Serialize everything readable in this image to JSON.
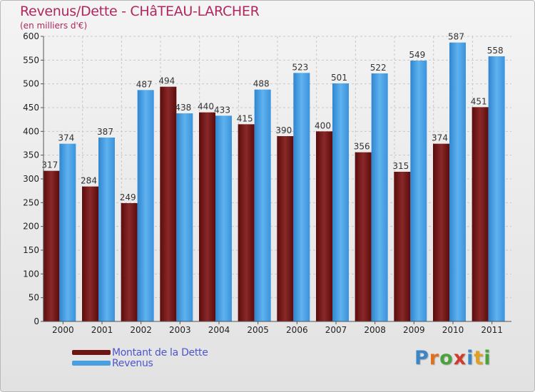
{
  "header": {
    "title": "Revenus/Dette - CHâTEAU-LARCHER",
    "subtitle": "(en milliers d'€)"
  },
  "legend": {
    "items": [
      {
        "label": "Montant de la Dette",
        "color": "#7a1a1a"
      },
      {
        "label": "Revenus",
        "color": "#4a9fe0"
      }
    ]
  },
  "logo": {
    "text": "Proxiti",
    "letter_colors": [
      "#3a86c6",
      "#e0701f",
      "#4aa23a",
      "#d43a2a",
      "#3a86c6",
      "#e0a020",
      "#4aa23a"
    ]
  },
  "chart_data": {
    "type": "bar",
    "title": "Revenus/Dette - CHâTEAU-LARCHER",
    "subtitle": "(en milliers d'€)",
    "categories": [
      "2000",
      "2001",
      "2002",
      "2003",
      "2004",
      "2005",
      "2006",
      "2007",
      "2008",
      "2009",
      "2010",
      "2011"
    ],
    "series": [
      {
        "name": "Montant de la Dette",
        "color": "#7a1a1a",
        "values": [
          317,
          284,
          249,
          494,
          440,
          415,
          390,
          400,
          356,
          315,
          374,
          451
        ]
      },
      {
        "name": "Revenus",
        "color": "#4a9fe0",
        "values": [
          374,
          387,
          487,
          438,
          433,
          488,
          523,
          501,
          522,
          549,
          587,
          558
        ]
      }
    ],
    "ylim": [
      0,
      600
    ],
    "yticks": [
      0,
      50,
      100,
      150,
      200,
      250,
      300,
      350,
      400,
      450,
      500,
      550,
      600
    ],
    "grid": true,
    "legend_position": "bottom-left"
  }
}
